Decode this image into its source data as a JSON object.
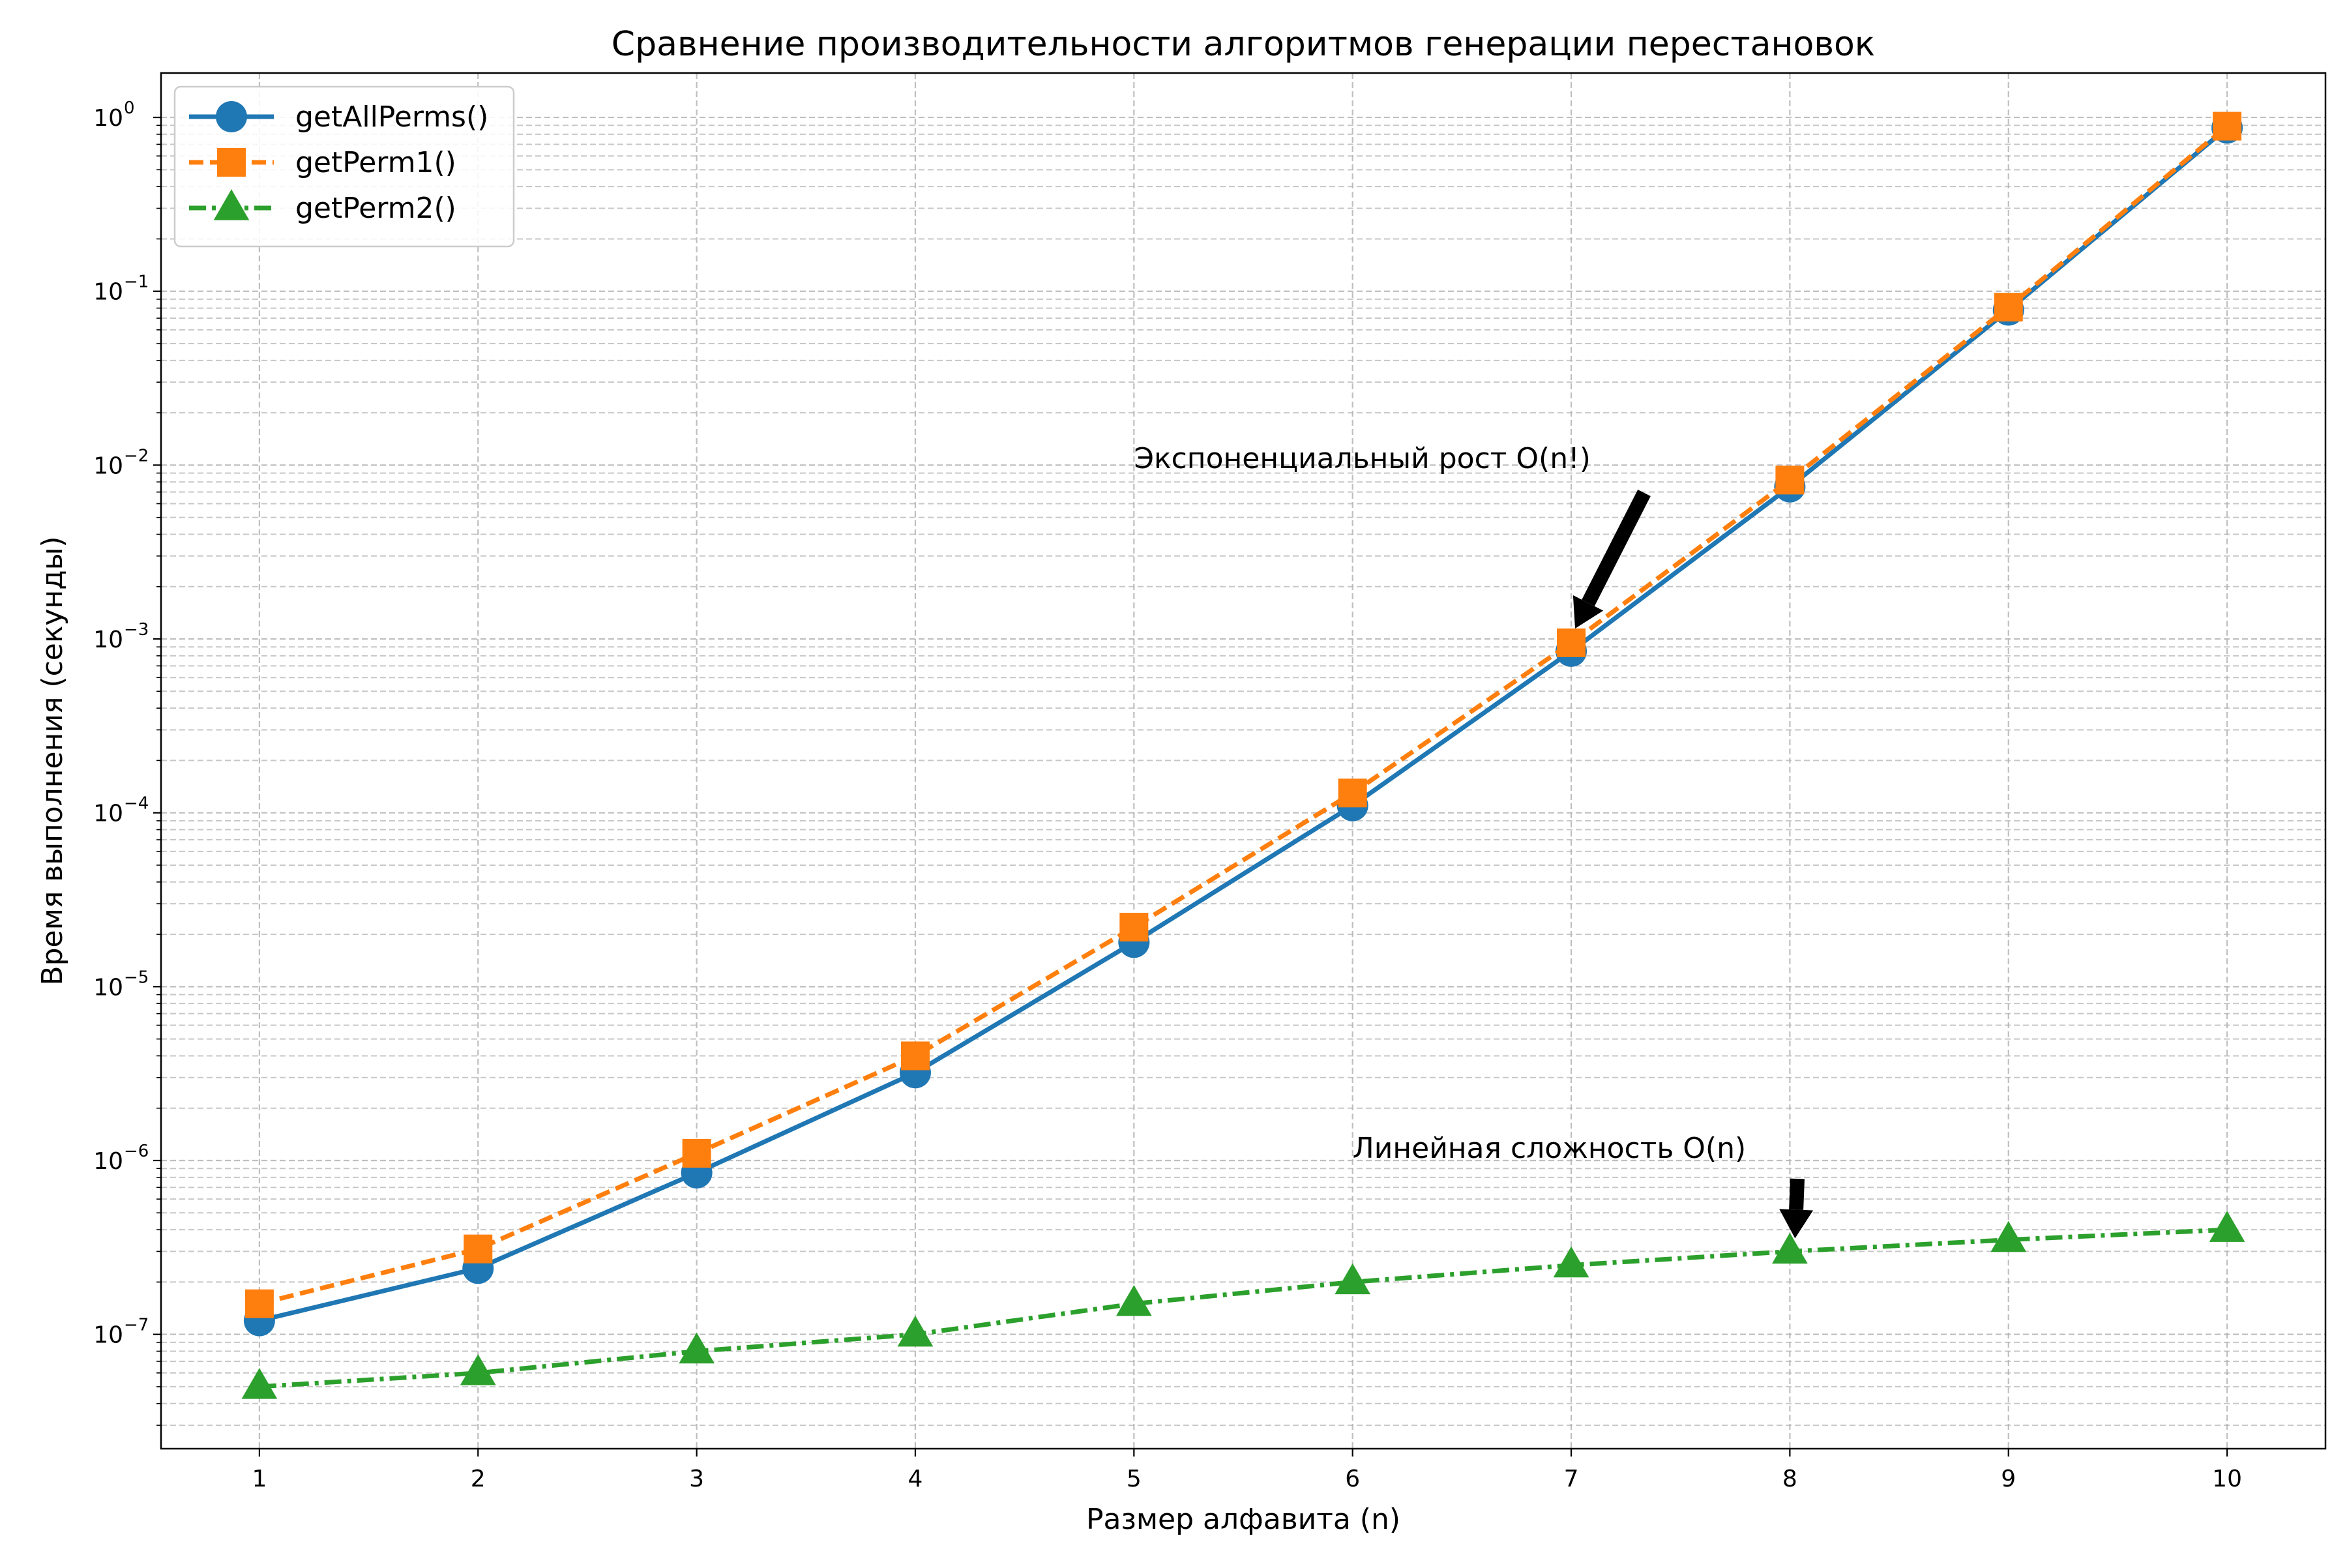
{
  "chart_data": {
    "type": "line",
    "title": "Сравнение производительности алгоритмов генерации перестановок",
    "xlabel": "Размер алфавита (n)",
    "ylabel": "Время выполнения (секунды)",
    "yscale": "log",
    "xlim": [
      0.55,
      10.45
    ],
    "ylim": [
      2.2e-08,
      1.8
    ],
    "grid": true,
    "legend_position": "top-left",
    "x": [
      1,
      2,
      3,
      4,
      5,
      6,
      7,
      8,
      9,
      10
    ],
    "x_tick_labels": [
      "1",
      "2",
      "3",
      "4",
      "5",
      "6",
      "7",
      "8",
      "9",
      "10"
    ],
    "y_ticks": [
      {
        "value": 1e-07,
        "base": "10",
        "exp": "−7"
      },
      {
        "value": 1e-06,
        "base": "10",
        "exp": "−6"
      },
      {
        "value": 1e-05,
        "base": "10",
        "exp": "−5"
      },
      {
        "value": 0.0001,
        "base": "10",
        "exp": "−4"
      },
      {
        "value": 0.001,
        "base": "10",
        "exp": "−3"
      },
      {
        "value": 0.01,
        "base": "10",
        "exp": "−2"
      },
      {
        "value": 0.1,
        "base": "10",
        "exp": "−1"
      },
      {
        "value": 1,
        "base": "10",
        "exp": "0"
      }
    ],
    "series": [
      {
        "name": "getAllPerms()",
        "color": "#1f77b4",
        "marker": "circle",
        "line_style": "solid",
        "values": [
          1.2e-07,
          2.4e-07,
          8.5e-07,
          3.2e-06,
          1.8e-05,
          0.00011,
          0.00085,
          0.0075,
          0.078,
          0.87
        ]
      },
      {
        "name": "getPerm1()",
        "color": "#ff7f0e",
        "marker": "square",
        "line_style": "dashed",
        "values": [
          1.5e-07,
          3.1e-07,
          1.1e-06,
          4e-06,
          2.2e-05,
          0.00013,
          0.00095,
          0.0082,
          0.081,
          0.89
        ]
      },
      {
        "name": "getPerm2()",
        "color": "#2ca02c",
        "marker": "triangle",
        "line_style": "dashdot",
        "values": [
          5e-08,
          6e-08,
          8e-08,
          1e-07,
          1.5e-07,
          2e-07,
          2.5e-07,
          3e-07,
          3.5e-07,
          4e-07
        ]
      }
    ],
    "annotations": [
      {
        "text": "Экспоненциальный рост O(n!)",
        "x": 7,
        "y": 0.00095
      },
      {
        "text": "Линейная сложность O(n)",
        "x": 8,
        "y": 3e-07
      }
    ]
  }
}
